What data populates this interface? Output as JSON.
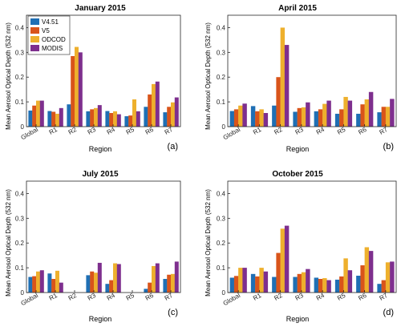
{
  "figure": {
    "legend": {
      "entries": [
        "V4.51",
        "V5",
        "ODCOD",
        "MODIS"
      ],
      "colors": [
        "#1f6fb4",
        "#d9541a",
        "#eeb02d",
        "#7e2f8e"
      ]
    }
  },
  "chart_data": [
    {
      "type": "bar",
      "title": "January 2015",
      "panel_label": "(a)",
      "xlabel": "Region",
      "ylabel": "Mean Aerosol Optical Depth (532 nm)",
      "categories": [
        "Global",
        "R1",
        "R2",
        "R3",
        "R4",
        "R5",
        "R6",
        "R7"
      ],
      "ylim": [
        0,
        0.45
      ],
      "yticks": [
        "0",
        "0.1",
        "0.2",
        "0.3",
        "0.4"
      ],
      "series": [
        {
          "name": "V4.51",
          "values": [
            0.065,
            0.063,
            0.09,
            0.062,
            0.063,
            0.042,
            0.08,
            0.058
          ]
        },
        {
          "name": "V5",
          "values": [
            0.085,
            0.06,
            0.285,
            0.07,
            0.055,
            0.045,
            0.13,
            0.08
          ]
        },
        {
          "name": "ODCOD",
          "values": [
            0.105,
            0.052,
            0.322,
            0.075,
            0.062,
            0.11,
            0.172,
            0.098
          ]
        },
        {
          "name": "MODIS",
          "values": [
            0.105,
            0.075,
            0.3,
            0.087,
            0.05,
            0.062,
            0.182,
            0.118
          ]
        }
      ]
    },
    {
      "type": "bar",
      "title": "April 2015",
      "panel_label": "(b)",
      "xlabel": "Region",
      "ylabel": "Mean Aerosol Optical Depth (532 nm)",
      "categories": [
        "Global",
        "R1",
        "R2",
        "R3",
        "R4",
        "R5",
        "R6",
        "R7"
      ],
      "ylim": [
        0,
        0.45
      ],
      "yticks": [
        "0",
        "0.1",
        "0.2",
        "0.3",
        "0.4"
      ],
      "series": [
        {
          "name": "V4.51",
          "values": [
            0.063,
            0.083,
            0.085,
            0.06,
            0.062,
            0.052,
            0.052,
            0.058
          ]
        },
        {
          "name": "V5",
          "values": [
            0.07,
            0.062,
            0.2,
            0.075,
            0.07,
            0.07,
            0.09,
            0.08
          ]
        },
        {
          "name": "ODCOD",
          "values": [
            0.085,
            0.07,
            0.4,
            0.078,
            0.092,
            0.12,
            0.11,
            0.08
          ]
        },
        {
          "name": "MODIS",
          "values": [
            0.093,
            0.055,
            0.33,
            0.098,
            0.105,
            0.105,
            0.14,
            0.112
          ]
        }
      ]
    },
    {
      "type": "bar",
      "title": "July 2015",
      "panel_label": "(c)",
      "xlabel": "Region",
      "ylabel": "Mean Aerosol Optical Depth (532 nm)",
      "categories": [
        "Global",
        "R1",
        "R2",
        "R3",
        "R4",
        "R5",
        "R6",
        "R7"
      ],
      "ylim": [
        0,
        0.45
      ],
      "yticks": [
        "0",
        "0.1",
        "0.2",
        "0.3",
        "0.4"
      ],
      "series": [
        {
          "name": "V4.51",
          "values": [
            0.063,
            0.077,
            0,
            0.07,
            0.035,
            0,
            0.015,
            0.055
          ]
        },
        {
          "name": "V5",
          "values": [
            0.066,
            0.055,
            0,
            0.085,
            0.05,
            0,
            0.04,
            0.072
          ]
        },
        {
          "name": "ODCOD",
          "values": [
            0.085,
            0.088,
            0,
            0.08,
            0.118,
            0,
            0.107,
            0.075
          ]
        },
        {
          "name": "MODIS",
          "values": [
            0.09,
            0.04,
            0,
            0.12,
            0.115,
            0,
            0.118,
            0.125
          ]
        }
      ]
    },
    {
      "type": "bar",
      "title": "October 2015",
      "panel_label": "(d)",
      "xlabel": "Region",
      "ylabel": "Mean Aerosol Optical Depth (532 nm)",
      "categories": [
        "Global",
        "R1",
        "R2",
        "R3",
        "R4",
        "R5",
        "R6",
        "R7"
      ],
      "ylim": [
        0,
        0.45
      ],
      "yticks": [
        "0",
        "0.1",
        "0.2",
        "0.3",
        "0.4"
      ],
      "series": [
        {
          "name": "V4.51",
          "values": [
            0.06,
            0.075,
            0.063,
            0.063,
            0.06,
            0.052,
            0.068,
            0.035
          ]
        },
        {
          "name": "V5",
          "values": [
            0.067,
            0.065,
            0.16,
            0.075,
            0.055,
            0.065,
            0.11,
            0.05
          ]
        },
        {
          "name": "ODCOD",
          "values": [
            0.1,
            0.1,
            0.258,
            0.082,
            0.058,
            0.138,
            0.183,
            0.122
          ]
        },
        {
          "name": "MODIS",
          "values": [
            0.1,
            0.085,
            0.27,
            0.095,
            0.05,
            0.09,
            0.168,
            0.125
          ]
        }
      ]
    }
  ]
}
